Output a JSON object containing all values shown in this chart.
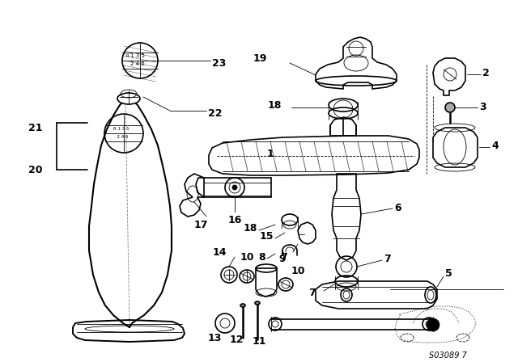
{
  "bg_color": "#ffffff",
  "line_color": "#000000",
  "watermark_text": "S03089 7",
  "lw_main": 1.2,
  "lw_thin": 0.6,
  "lw_thick": 1.8
}
